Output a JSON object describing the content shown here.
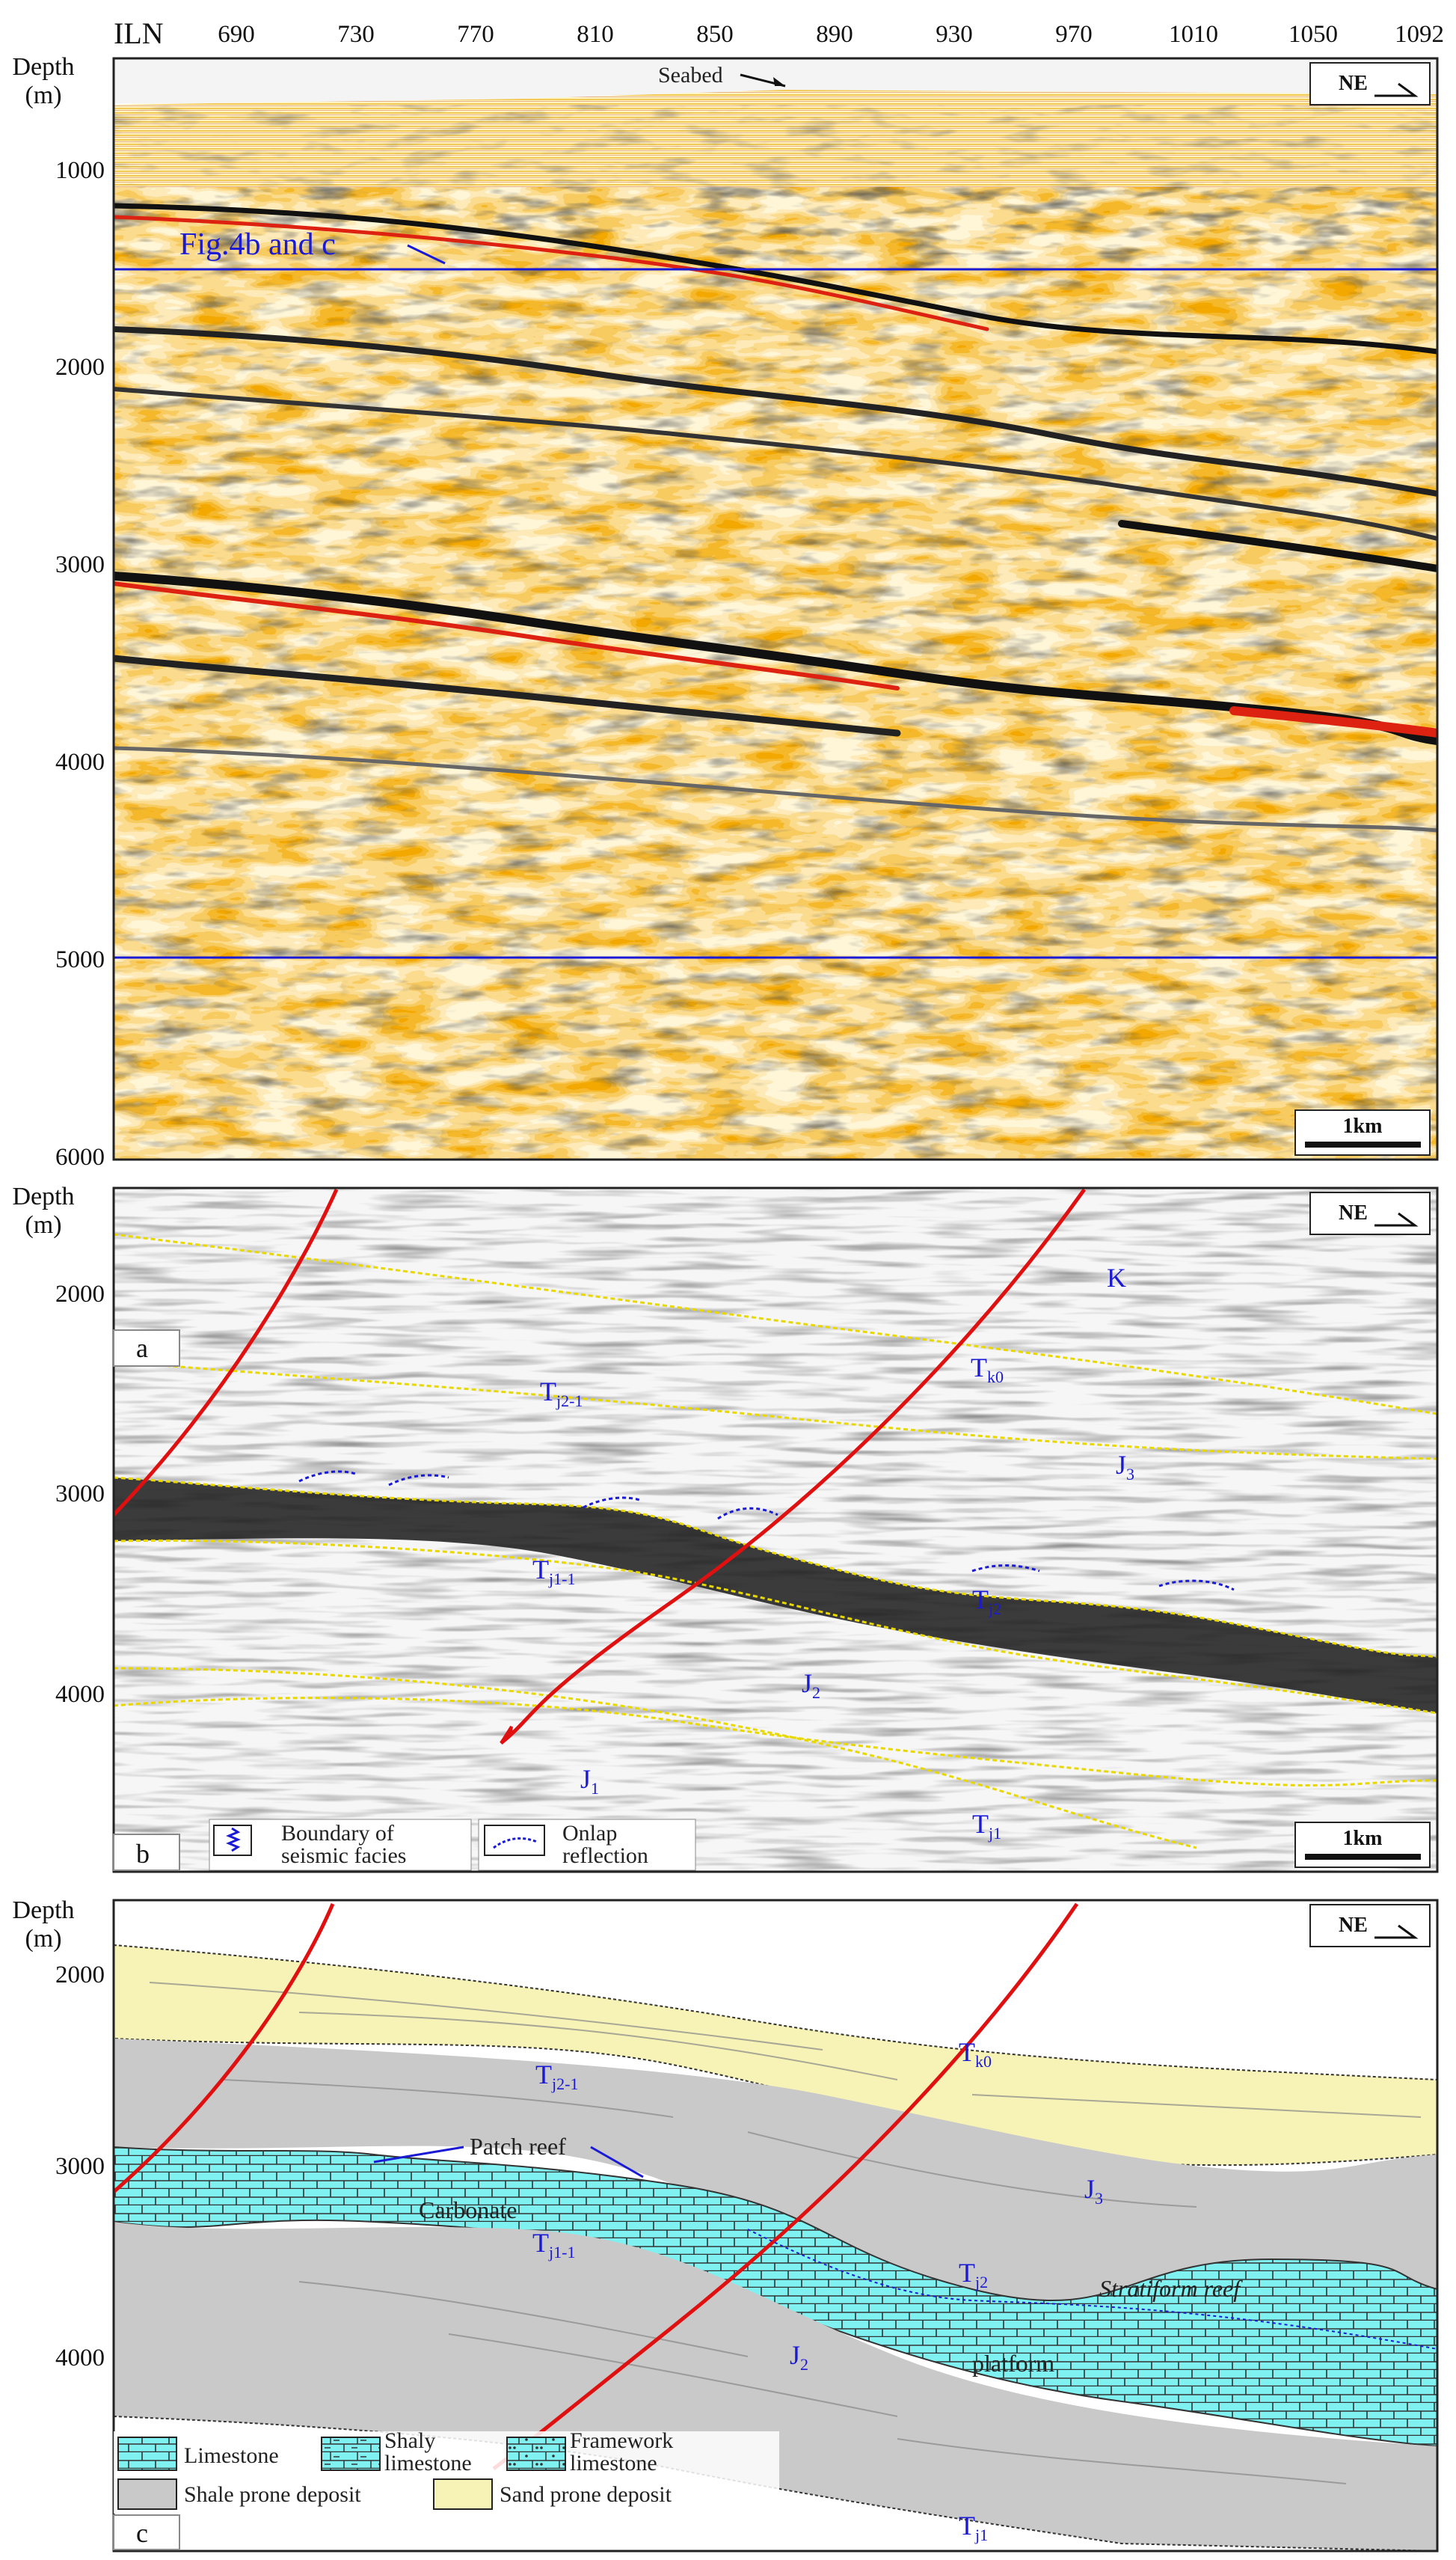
{
  "panel_a": {
    "line_label": "ILN",
    "inline_ticks": [
      "690",
      "730",
      "770",
      "810",
      "850",
      "890",
      "930",
      "970",
      "1010",
      "1050",
      "1092"
    ],
    "depth_title_1": "Depth",
    "depth_title_2": "(m)",
    "depth_ticks": [
      "1000",
      "2000",
      "3000",
      "4000",
      "5000",
      "6000"
    ],
    "seabed_label": "Seabed",
    "inset_label": "Fig.4b and c",
    "north_label": "NE",
    "scale_label": "1km"
  },
  "panel_b": {
    "depth_title_1": "Depth",
    "depth_title_2": "(m)",
    "depth_ticks": [
      "2000",
      "3000",
      "4000"
    ],
    "north_label": "NE",
    "scale_label": "1km",
    "letter_a": "a",
    "letter_b": "b",
    "legend_facies_1": "Boundary of",
    "legend_facies_2": "seismic facies",
    "legend_onlap_1": "Onlap",
    "legend_onlap_2": "reflection",
    "horizons": {
      "K": "K",
      "Tk0": "T",
      "Tk0_sub": "k0",
      "Tj21": "T",
      "Tj21_sub": "j2-1",
      "J3": "J",
      "J3_sub": "3",
      "Tj11": "T",
      "Tj11_sub": "j1-1",
      "Tj2": "T",
      "Tj2_sub": "j2",
      "J2": "J",
      "J2_sub": "2",
      "J1": "J",
      "J1_sub": "1",
      "Tj1": "T",
      "Tj1_sub": "j1"
    }
  },
  "panel_c": {
    "depth_title_1": "Depth",
    "depth_title_2": "(m)",
    "depth_ticks": [
      "2000",
      "3000",
      "4000"
    ],
    "north_label": "NE",
    "letter_c": "c",
    "patch_reef": "Patch reef",
    "carbonate": "Carbonate",
    "stratiform_reef": "Stratiform reef",
    "platform": "platform",
    "horizons": {
      "Tk0": "T",
      "Tk0_sub": "k0",
      "Tj21": "T",
      "Tj21_sub": "j2-1",
      "J3": "J",
      "J3_sub": "3",
      "Tj11": "T",
      "Tj11_sub": "j1-1",
      "Tj2": "T",
      "Tj2_sub": "j2",
      "J2": "J",
      "J2_sub": "2",
      "Tj1": "T",
      "Tj1_sub": "j1"
    },
    "legend": {
      "limestone": "Limestone",
      "shaly_1": "Shaly",
      "shaly_2": "limestone",
      "framework_1": "Framework",
      "framework_2": "limestone",
      "shale": "Shale prone deposit",
      "sand": "Sand prone deposit"
    }
  },
  "colors": {
    "fault": "#e01010",
    "inset_box": "#1a1ad6",
    "horizon": "#e8d800",
    "sand": "#f7f3b6",
    "shale": "#c9c9c9",
    "carbonate": "#7ff1f1"
  }
}
